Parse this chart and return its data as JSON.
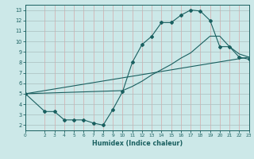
{
  "xlabel": "Humidex (Indice chaleur)",
  "bg_color": "#cce8e8",
  "grid_color_v": "#e8c8c8",
  "grid_color_h": "#c8d8d8",
  "line_color": "#1a6060",
  "xlim": [
    0,
    23
  ],
  "ylim": [
    1.5,
    13.5
  ],
  "xticks": [
    0,
    2,
    3,
    4,
    5,
    6,
    7,
    8,
    9,
    10,
    11,
    12,
    13,
    14,
    15,
    16,
    17,
    18,
    19,
    20,
    21,
    22,
    23
  ],
  "yticks": [
    2,
    3,
    4,
    5,
    6,
    7,
    8,
    9,
    10,
    11,
    12,
    13
  ],
  "line1_x": [
    0,
    2,
    3,
    4,
    5,
    6,
    7,
    8,
    9,
    10,
    11,
    12,
    13,
    14,
    15,
    16,
    17,
    18,
    19,
    20,
    21,
    22,
    23
  ],
  "line1_y": [
    5,
    3.3,
    3.3,
    2.5,
    2.5,
    2.5,
    2.2,
    2.0,
    3.5,
    5.2,
    8.0,
    9.7,
    10.5,
    11.8,
    11.8,
    12.5,
    13.0,
    12.9,
    12.0,
    9.5,
    9.5,
    8.5,
    8.3
  ],
  "line2_x": [
    0,
    23
  ],
  "line2_y": [
    5,
    8.5
  ],
  "line3_x": [
    0,
    10,
    11,
    12,
    13,
    14,
    15,
    16,
    17,
    18,
    19,
    20,
    21,
    22,
    23
  ],
  "line3_y": [
    5,
    5.3,
    5.7,
    6.2,
    6.8,
    7.3,
    7.8,
    8.4,
    8.9,
    9.7,
    10.5,
    10.5,
    9.5,
    8.8,
    8.5
  ]
}
